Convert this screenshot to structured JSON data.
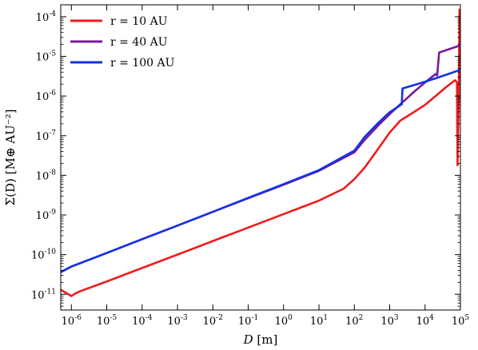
{
  "chart_data": {
    "type": "line",
    "title": "",
    "xlabel_italic": "D",
    "xlabel_rest": " [m]",
    "ylabel": "Σ(D) [M⊕ AU⁻²]",
    "xscale": "log",
    "yscale": "log",
    "xlim": [
      5e-07,
      100000.0
    ],
    "ylim": [
      4e-12,
      0.0002
    ],
    "xticks": [
      {
        "value": 1e-06,
        "base": "10",
        "exp": "-6"
      },
      {
        "value": 1e-05,
        "base": "10",
        "exp": "-5"
      },
      {
        "value": 0.0001,
        "base": "10",
        "exp": "-4"
      },
      {
        "value": 0.001,
        "base": "10",
        "exp": "-3"
      },
      {
        "value": 0.01,
        "base": "10",
        "exp": "-2"
      },
      {
        "value": 0.1,
        "base": "10",
        "exp": "-1"
      },
      {
        "value": 1.0,
        "base": "10",
        "exp": "0"
      },
      {
        "value": 10.0,
        "base": "10",
        "exp": "1"
      },
      {
        "value": 100.0,
        "base": "10",
        "exp": "2"
      },
      {
        "value": 1000.0,
        "base": "10",
        "exp": "3"
      },
      {
        "value": 10000.0,
        "base": "10",
        "exp": "4"
      },
      {
        "value": 100000.0,
        "base": "10",
        "exp": "5"
      }
    ],
    "yticks": [
      {
        "value": 1e-11,
        "base": "10",
        "exp": "-11"
      },
      {
        "value": 1e-10,
        "base": "10",
        "exp": "-10"
      },
      {
        "value": 1e-09,
        "base": "10",
        "exp": "-9"
      },
      {
        "value": 1e-08,
        "base": "10",
        "exp": "-8"
      },
      {
        "value": 1e-07,
        "base": "10",
        "exp": "-7"
      },
      {
        "value": 1e-06,
        "base": "10",
        "exp": "-6"
      },
      {
        "value": 1e-05,
        "base": "10",
        "exp": "-5"
      },
      {
        "value": 0.0001,
        "base": "10",
        "exp": "-4"
      }
    ],
    "grid": false,
    "legend_position": "top-left",
    "series": [
      {
        "name": "r = 10 AU",
        "color": "#ee1c1c",
        "points": [
          [
            5e-07,
            1.3e-11
          ],
          [
            1e-06,
            9e-12
          ],
          [
            1.3e-06,
            1.05e-11
          ],
          [
            1.8e-06,
            1.2e-11
          ],
          [
            1e-05,
            2.1e-11
          ],
          [
            0.0001,
            4.6e-11
          ],
          [
            0.001,
            1e-10
          ],
          [
            0.01,
            2.2e-10
          ],
          [
            0.1,
            4.8e-10
          ],
          [
            1,
            1.05e-09
          ],
          [
            10,
            2.3e-09
          ],
          [
            50,
            4.6e-09
          ],
          [
            100,
            8e-09
          ],
          [
            200,
            1.6e-08
          ],
          [
            500,
            5e-08
          ],
          [
            1000,
            1.2e-07
          ],
          [
            2000,
            2.4e-07
          ],
          [
            5000,
            4e-07
          ],
          [
            10000.0,
            6e-07
          ],
          [
            20000.0,
            1e-06
          ],
          [
            40000.0,
            1.7e-06
          ],
          [
            70000.0,
            2.5e-06
          ],
          [
            80000.0,
            2.2e-06
          ],
          [
            83000.0,
            1.8e-08
          ],
          [
            90000.0,
            1e-06
          ],
          [
            94000.0,
            0.00015
          ],
          [
            96000.0,
            5e-06
          ],
          [
            98000.0,
            8e-05
          ]
        ]
      },
      {
        "name": "r = 40 AU",
        "color": "#7a1a98",
        "points": [
          [
            5e-07,
            3.6e-11
          ],
          [
            1e-06,
            5e-11
          ],
          [
            1e-05,
            1.1e-10
          ],
          [
            0.0001,
            2.45e-10
          ],
          [
            0.001,
            5.4e-10
          ],
          [
            0.01,
            1.2e-09
          ],
          [
            0.1,
            2.65e-09
          ],
          [
            1,
            5.8e-09
          ],
          [
            10,
            1.3e-08
          ],
          [
            100,
            3.8e-08
          ],
          [
            200,
            8e-08
          ],
          [
            500,
            1.9e-07
          ],
          [
            1000,
            3.5e-07
          ],
          [
            2000,
            6.2e-07
          ],
          [
            5000,
            1.3e-06
          ],
          [
            10000.0,
            2.2e-06
          ],
          [
            20000.0,
            3.6e-06
          ],
          [
            22000.0,
            3.3e-06
          ],
          [
            25000.0,
            1.25e-05
          ],
          [
            100000.0,
            1.9e-05
          ]
        ]
      },
      {
        "name": "r = 100 AU",
        "color": "#1432e6",
        "points": [
          [
            5e-07,
            3.6e-11
          ],
          [
            1e-06,
            5e-11
          ],
          [
            1e-05,
            1.1e-10
          ],
          [
            0.0001,
            2.45e-10
          ],
          [
            0.001,
            5.4e-10
          ],
          [
            0.01,
            1.2e-09
          ],
          [
            0.1,
            2.7e-09
          ],
          [
            1,
            6e-09
          ],
          [
            10,
            1.35e-08
          ],
          [
            100,
            4.2e-08
          ],
          [
            200,
            9.5e-08
          ],
          [
            500,
            2.2e-07
          ],
          [
            1000,
            3.9e-07
          ],
          [
            2200,
            6.2e-07
          ],
          [
            2300,
            1.55e-06
          ],
          [
            5000,
            1.9e-06
          ],
          [
            10000.0,
            2.3e-06
          ],
          [
            20000.0,
            2.8e-06
          ],
          [
            50000.0,
            3.7e-06
          ],
          [
            100000.0,
            4.6e-06
          ]
        ]
      }
    ]
  }
}
